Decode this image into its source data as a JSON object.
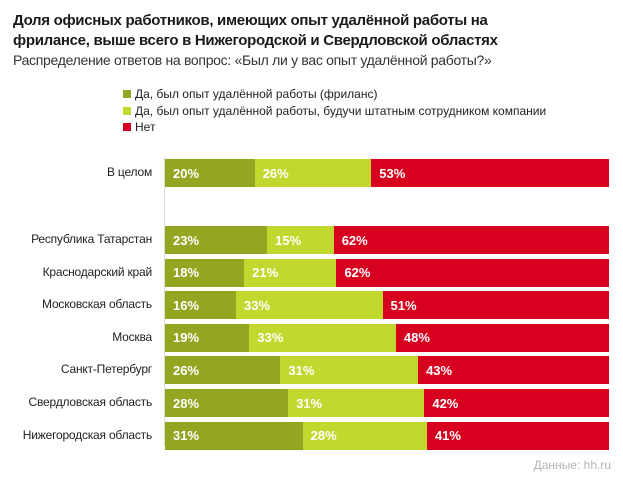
{
  "chart_data": {
    "type": "bar",
    "orientation": "horizontal",
    "stacked": true,
    "title": "Доля офисных работников, имеющих опыт удалённой работы на фрилансе, выше всего в Нижегородской и Свердловской областях",
    "title_lines": [
      "Доля офисных работников, имеющих опыт удалённой работы на",
      "фрилансе, выше всего в Нижегородской и Свердловской областях"
    ],
    "subtitle": "Распределение ответов на вопрос: «Был ли у вас опыт удалённой работы?»",
    "xlabel": "",
    "ylabel": "",
    "unit": "%",
    "legend_position": "top-left",
    "categories": [
      "В целом",
      "Республика Татарстан",
      "Краснодарский край",
      "Московская область",
      "Москва",
      "Санкт-Петербург",
      "Свердловская область",
      "Нижегородская область"
    ],
    "series": [
      {
        "name": "Да, был опыт удалённой работы (фриланс)",
        "color": "#94a621",
        "values": [
          20,
          23,
          18,
          16,
          19,
          26,
          28,
          31
        ]
      },
      {
        "name": "Да, был опыт удалённой работы, будучи штатным сотрудником компании",
        "color": "#c2d82e",
        "values": [
          26,
          15,
          21,
          33,
          33,
          31,
          31,
          28
        ]
      },
      {
        "name": "Нет",
        "color": "#d7001f",
        "values": [
          53,
          62,
          62,
          51,
          48,
          43,
          42,
          41
        ]
      }
    ],
    "source": "Данные: hh.ru"
  }
}
